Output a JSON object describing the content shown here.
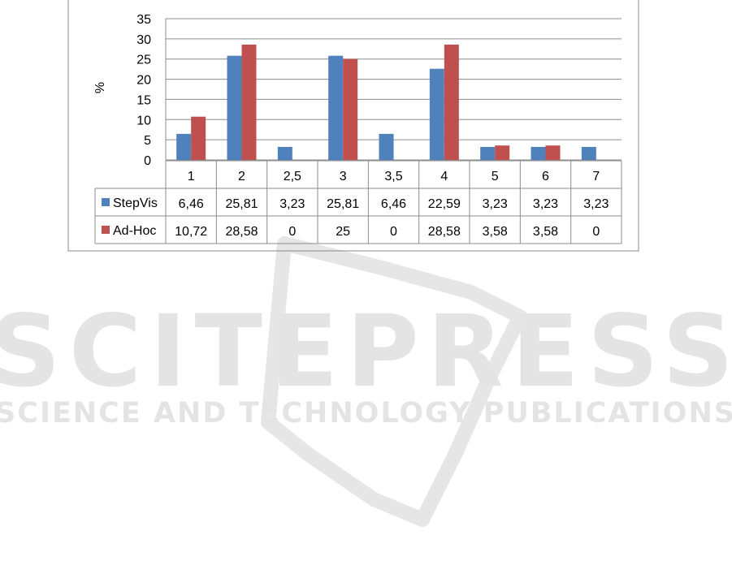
{
  "chart_data": {
    "type": "bar",
    "title": "",
    "xlabel": "",
    "ylabel": "%",
    "ylim": [
      0,
      35
    ],
    "yticks": [
      0,
      5,
      10,
      15,
      20,
      25,
      30,
      35
    ],
    "grid": true,
    "legend": "data-table-left",
    "categories": [
      "1",
      "2",
      "2,5",
      "3",
      "3,5",
      "4",
      "5",
      "6",
      "7"
    ],
    "series": [
      {
        "name": "StepVis",
        "color": "#4f81bd",
        "values": [
          6.46,
          25.81,
          3.23,
          25.81,
          6.46,
          22.59,
          3.23,
          3.23,
          3.23
        ],
        "labels": [
          "6,46",
          "25,81",
          "3,23",
          "25,81",
          "6,46",
          "22,59",
          "3,23",
          "3,23",
          "3,23"
        ]
      },
      {
        "name": "Ad-Hoc",
        "color": "#c0504d",
        "values": [
          10.72,
          28.58,
          0,
          25,
          0,
          28.58,
          3.58,
          3.58,
          0
        ],
        "labels": [
          "10,72",
          "28,58",
          "0",
          "25",
          "0",
          "28,58",
          "3,58",
          "3,58",
          "0"
        ]
      }
    ]
  },
  "watermark": {
    "title": "SCITEPRESS",
    "subtitle": "SCIENCE AND TECHNOLOGY PUBLICATIONS"
  }
}
